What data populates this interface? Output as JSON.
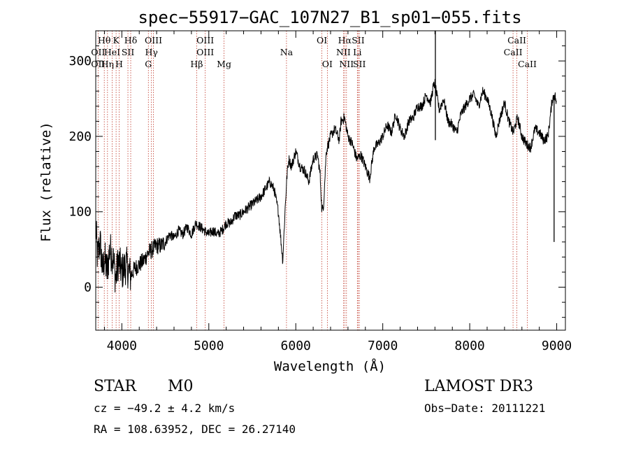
{
  "chart_data": {
    "type": "line",
    "title": "spec−55917−GAC_107N27_B1_sp01−055.fits",
    "xlabel": "Wavelength (Å)",
    "ylabel": "Flux (relative)",
    "xlim": [
      3700,
      9100
    ],
    "ylim": [
      -57,
      340
    ],
    "xticks": [
      4000,
      5000,
      6000,
      7000,
      8000,
      9000
    ],
    "yticks": [
      0,
      100,
      200,
      300
    ],
    "series": [
      {
        "name": "flux",
        "anchors": {
          "x": [
            3700,
            3720,
            3750,
            3780,
            3800,
            3830,
            3860,
            3900,
            3930,
            3960,
            4000,
            4050,
            4100,
            4150,
            4200,
            4250,
            4300,
            4350,
            4400,
            4450,
            4500,
            4550,
            4600,
            4650,
            4700,
            4750,
            4800,
            4850,
            4900,
            4950,
            5000,
            5050,
            5100,
            5150,
            5200,
            5250,
            5300,
            5350,
            5400,
            5450,
            5500,
            5550,
            5600,
            5650,
            5700,
            5750,
            5800,
            5850,
            5880,
            5900,
            5920,
            5950,
            6000,
            6050,
            6100,
            6150,
            6200,
            6250,
            6280,
            6300,
            6320,
            6350,
            6400,
            6450,
            6500,
            6520,
            6560,
            6600,
            6650,
            6700,
            6750,
            6800,
            6850,
            6900,
            6950,
            7000,
            7050,
            7100,
            7150,
            7200,
            7250,
            7300,
            7350,
            7400,
            7450,
            7500,
            7550,
            7580,
            7600,
            7620,
            7650,
            7700,
            7750,
            7800,
            7850,
            7900,
            7950,
            8000,
            8050,
            8100,
            8150,
            8200,
            8250,
            8300,
            8350,
            8400,
            8450,
            8500,
            8550,
            8600,
            8650,
            8700,
            8750,
            8800,
            8850,
            8900,
            8950,
            8980,
            9000
          ],
          "y": [
            80,
            40,
            60,
            20,
            40,
            20,
            50,
            40,
            10,
            35,
            20,
            30,
            15,
            25,
            30,
            35,
            45,
            50,
            55,
            55,
            60,
            70,
            65,
            75,
            70,
            80,
            70,
            85,
            80,
            75,
            70,
            75,
            70,
            75,
            85,
            85,
            95,
            95,
            100,
            105,
            110,
            115,
            120,
            130,
            140,
            130,
            100,
            35,
            110,
            150,
            170,
            160,
            180,
            160,
            155,
            140,
            170,
            175,
            150,
            100,
            110,
            180,
            200,
            210,
            195,
            220,
            225,
            200,
            190,
            170,
            175,
            160,
            145,
            185,
            190,
            200,
            215,
            205,
            230,
            210,
            200,
            220,
            225,
            240,
            240,
            255,
            245,
            265,
            270,
            255,
            235,
            250,
            220,
            215,
            205,
            230,
            240,
            250,
            255,
            240,
            260,
            250,
            230,
            200,
            225,
            245,
            220,
            205,
            225,
            200,
            190,
            185,
            210,
            205,
            195,
            200,
            250,
            255,
            240
          ]
        }
      }
    ],
    "spikes": [
      {
        "x": 7605,
        "low": 195,
        "high": 340
      },
      {
        "x": 8970,
        "low": 60,
        "high": 255
      }
    ],
    "lines": [
      {
        "name": "Hθ",
        "x": 3798,
        "row": 0
      },
      {
        "name": "OII",
        "x": 3727,
        "row": 1
      },
      {
        "name": "OII",
        "x": 3727,
        "row": 2
      },
      {
        "name": "Hη",
        "x": 3835,
        "row": 2
      },
      {
        "name": "K",
        "x": 3934,
        "row": 0
      },
      {
        "name": "HeI",
        "x": 3889,
        "row": 1
      },
      {
        "name": "H",
        "x": 3969,
        "row": 2
      },
      {
        "name": "Hδ",
        "x": 4102,
        "row": 0
      },
      {
        "name": "SII",
        "x": 4070,
        "row": 1
      },
      {
        "name": "OIII",
        "x": 4363,
        "row": 0
      },
      {
        "name": "Hγ",
        "x": 4340,
        "row": 1
      },
      {
        "name": "G",
        "x": 4305,
        "row": 2
      },
      {
        "name": "OIII",
        "x": 4959,
        "row": 0
      },
      {
        "name": "OIII",
        "x": 4959,
        "row": 1
      },
      {
        "name": "Hβ",
        "x": 4861,
        "row": 2
      },
      {
        "name": "Mg",
        "x": 5175,
        "row": 2
      },
      {
        "name": "Na",
        "x": 5893,
        "row": 1
      },
      {
        "name": "OI",
        "x": 6300,
        "row": 0
      },
      {
        "name": "OI",
        "x": 6363,
        "row": 2
      },
      {
        "name": "Hα",
        "x": 6563,
        "row": 0
      },
      {
        "name": "NII",
        "x": 6548,
        "row": 1
      },
      {
        "name": "NII",
        "x": 6583,
        "row": 2
      },
      {
        "name": "SII",
        "x": 6717,
        "row": 0
      },
      {
        "name": "Li",
        "x": 6708,
        "row": 1
      },
      {
        "name": "SII",
        "x": 6731,
        "row": 2
      },
      {
        "name": "CaII",
        "x": 8542,
        "row": 0
      },
      {
        "name": "CaII",
        "x": 8498,
        "row": 1
      },
      {
        "name": "CaII",
        "x": 8662,
        "row": 2
      }
    ]
  },
  "info": {
    "object_class": "STAR",
    "subclass": "M0",
    "survey": "LAMOST DR3",
    "redshift": "cz = −49.2 ± 4.2 km/s",
    "obs_date": "Obs−Date: 20111221",
    "coords": "RA = 108.63952, DEC =  26.27140"
  },
  "colors": {
    "line_marker": "#c0392b",
    "spectrum": "#000000"
  }
}
